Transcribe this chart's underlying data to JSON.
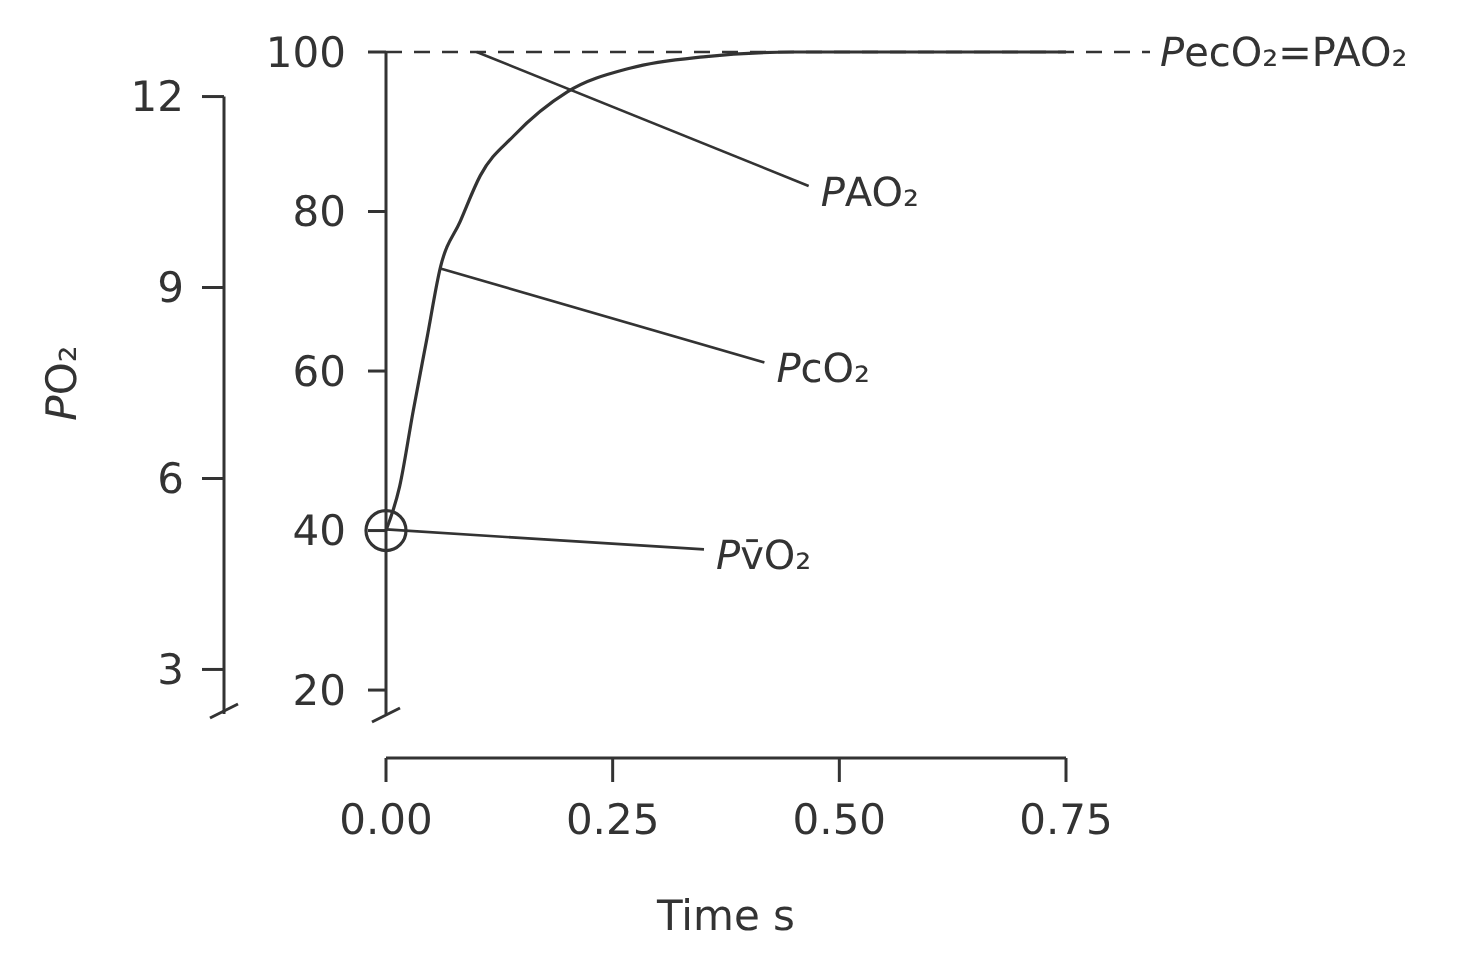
{
  "chart_data": {
    "type": "line",
    "xlabel": "Time s",
    "ylabel": "PO₂",
    "xlim": [
      0,
      0.75
    ],
    "xticks": [
      {
        "value": 0,
        "label": "0.00"
      },
      {
        "value": 0.25,
        "label": "0.25"
      },
      {
        "value": 0.5,
        "label": "0.50"
      },
      {
        "value": 0.75,
        "label": "0.75"
      }
    ],
    "ylim": [
      2.3,
      12.7
    ],
    "yticks": [
      3,
      6,
      9,
      12
    ],
    "y2lim": [
      17,
      100
    ],
    "y2ticks": [
      20,
      40,
      60,
      80,
      100
    ],
    "series": [
      {
        "axis": "y2",
        "color": "#333333",
        "marker": "none",
        "x": [
          0,
          0.015,
          0.03,
          0.045,
          0.06,
          0.082,
          0.104,
          0.141,
          0.2,
          0.27,
          0.35,
          0.45,
          0.6,
          0.75
        ],
        "values": [
          40,
          45.5,
          55,
          64,
          73,
          78.8,
          84.5,
          89.5,
          95,
          98,
          99.4,
          100,
          100,
          100
        ]
      },
      {
        "type": "scatter",
        "axis": "y2",
        "color": "#333333",
        "marker": "circle",
        "x": [
          0
        ],
        "values": [
          40
        ]
      }
    ],
    "ref_lines": [
      {
        "axis": "y2",
        "value": 100,
        "label": "PecO₂=PAO₂",
        "line_style": "dashed"
      }
    ],
    "annotations": [
      {
        "text": "PAO₂",
        "x": 0.1,
        "y": 12.7
      },
      {
        "text": "PcO₂",
        "x": 0.06,
        "y": 9.3
      },
      {
        "text": "Pv̄O₂",
        "x": 0,
        "y": 5.2
      }
    ]
  }
}
